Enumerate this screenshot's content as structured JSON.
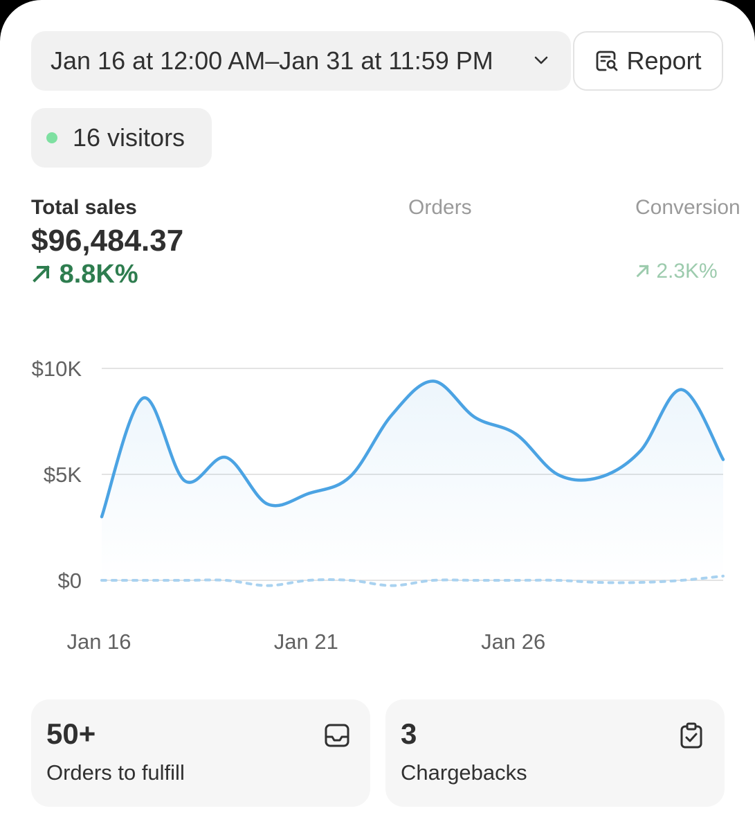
{
  "header": {
    "date_range": "Jan 16 at 12:00 AM–Jan 31 at 11:59 PM",
    "report_label": "Report",
    "visitors": "16 visitors"
  },
  "metrics": {
    "total_sales": {
      "label": "Total sales",
      "value": "$96,484.37",
      "delta": "8.8K%"
    },
    "orders": {
      "label": "Orders"
    },
    "conversion": {
      "label": "Conversion",
      "delta": "2.3K%"
    }
  },
  "colors": {
    "accent": "#4ba3e3",
    "positive": "#2e7d4f",
    "live": "#7ee0a1"
  },
  "chart_data": {
    "type": "line",
    "x": [
      "Jan 16",
      "Jan 17",
      "Jan 18",
      "Jan 19",
      "Jan 20",
      "Jan 21",
      "Jan 22",
      "Jan 23",
      "Jan 24",
      "Jan 25",
      "Jan 26",
      "Jan 27",
      "Jan 28",
      "Jan 29",
      "Jan 30",
      "Jan 31"
    ],
    "xticks": [
      "Jan 16",
      "Jan 21",
      "Jan 26"
    ],
    "yticks": [
      "$0",
      "$5K",
      "$10K"
    ],
    "ylim": [
      0,
      10000
    ],
    "grid": true,
    "series": [
      {
        "values": [
          3000,
          8600,
          4700,
          5800,
          3600,
          4100,
          4900,
          7800,
          9400,
          7700,
          6900,
          5000,
          4850,
          6100,
          9000,
          5700
        ]
      },
      {
        "values": [
          0,
          0,
          0,
          0,
          -250,
          0,
          0,
          -250,
          0,
          0,
          0,
          0,
          -100,
          -100,
          0,
          200
        ],
        "style": "dotted"
      }
    ]
  },
  "cards": [
    {
      "number": "50+",
      "caption": "Orders to fulfill",
      "icon": "inbox-icon"
    },
    {
      "number": "3",
      "caption": "Chargebacks",
      "icon": "clipboard-check-icon"
    }
  ]
}
